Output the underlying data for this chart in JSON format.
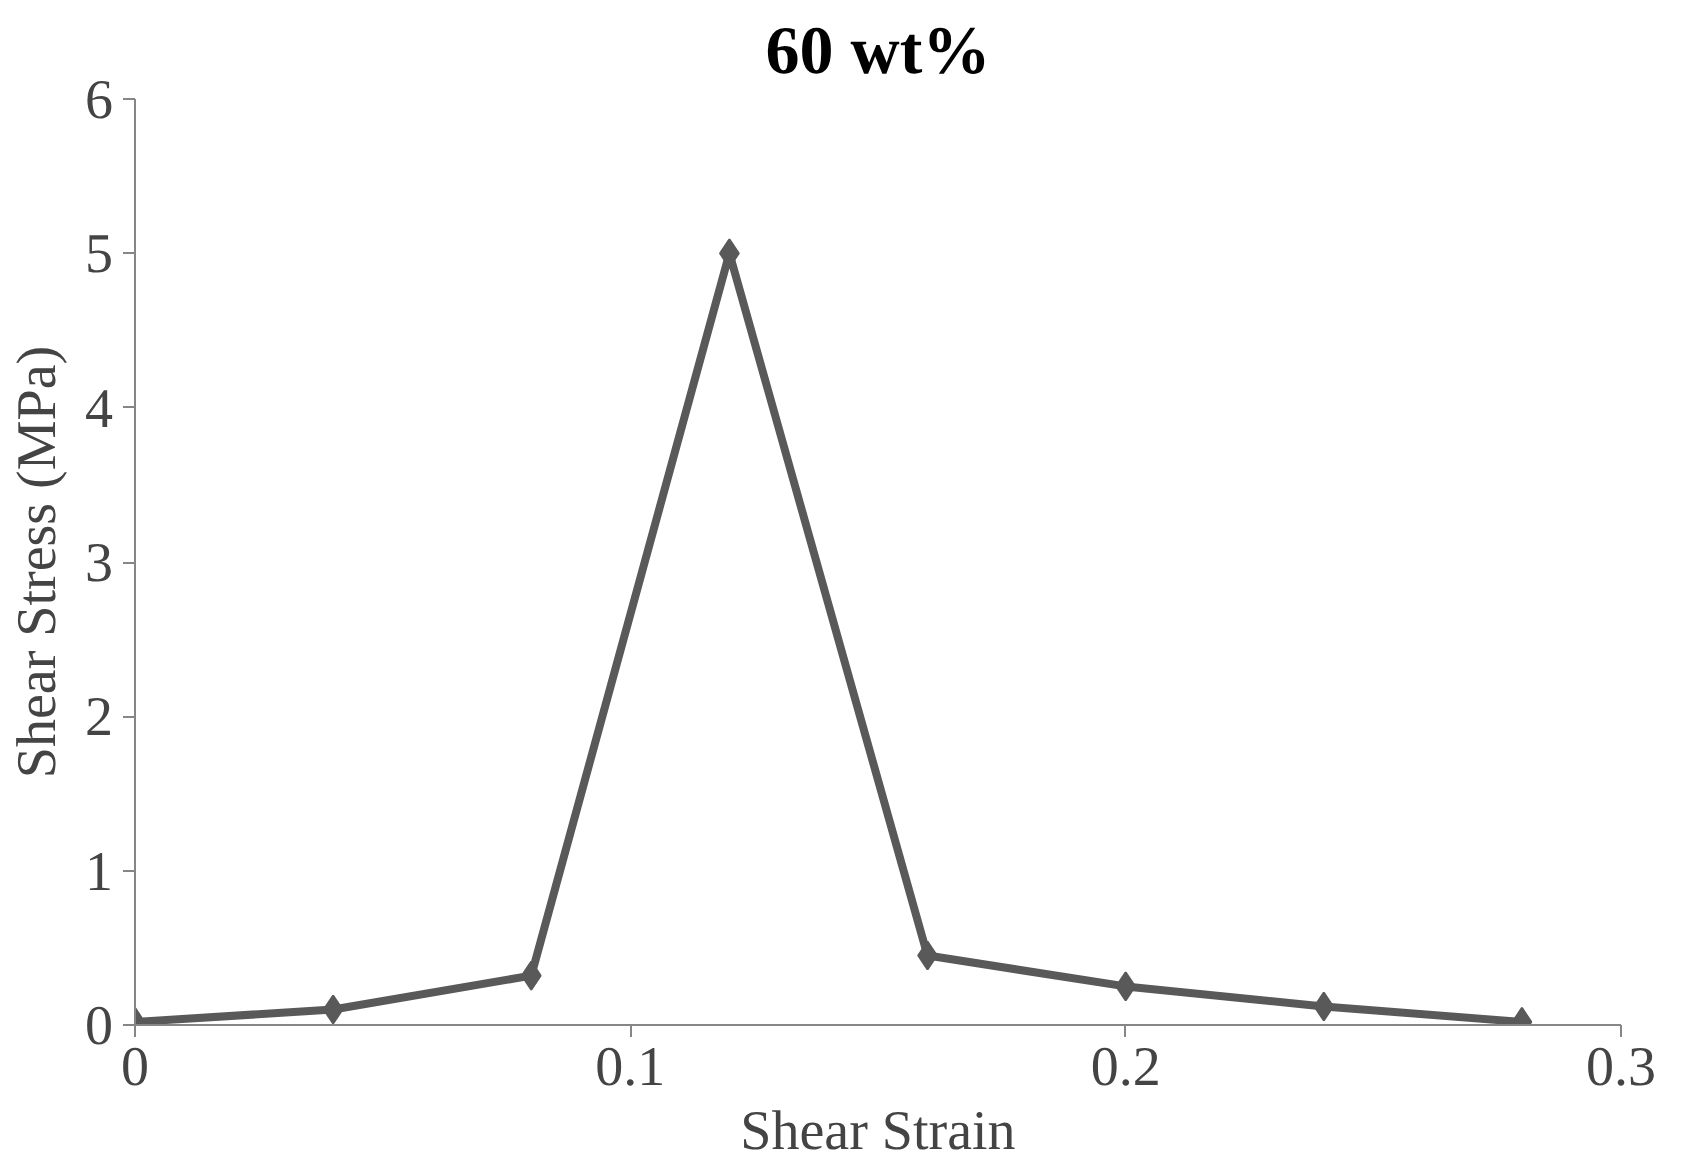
{
  "chart_data": {
    "type": "line",
    "title": "60 wt%",
    "xlabel": "Shear Strain",
    "ylabel": "Shear Stress (MPa)",
    "series": [
      {
        "color": "#595959",
        "x": [
          0,
          0.04,
          0.08,
          0.12,
          0.16,
          0.2,
          0.24,
          0.28
        ],
        "values": [
          0.02,
          0.1,
          0.32,
          5.0,
          0.45,
          0.25,
          0.12,
          0.02
        ]
      }
    ],
    "xlim": [
      0,
      0.3
    ],
    "xticks": [
      0,
      0.1,
      0.2,
      0.3
    ],
    "ylim": [
      0,
      6
    ],
    "yticks": [
      0,
      1,
      2,
      3,
      4,
      5,
      6
    ],
    "grid": false,
    "marker": "diamond",
    "line_style": "solid"
  }
}
